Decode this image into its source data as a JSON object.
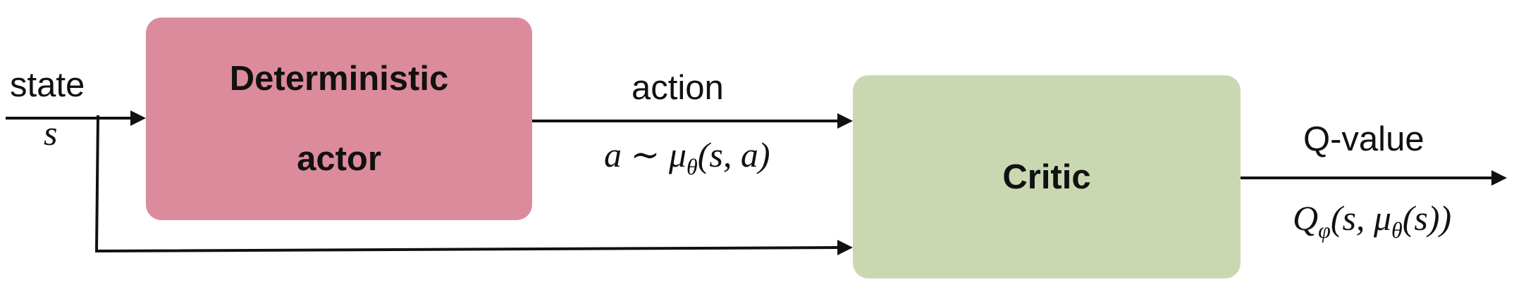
{
  "nodes": {
    "actor": {
      "line1": "Deterministic",
      "line2": "actor",
      "color": "#dc8b9c"
    },
    "critic": {
      "label": "Critic",
      "color": "#cad8b2"
    }
  },
  "edges": {
    "input": {
      "label": "state",
      "symbol": "s"
    },
    "action": {
      "label": "action",
      "formula": "a ~ μθ(s, a)"
    },
    "output": {
      "label": "Q-value",
      "formula": "Qφ(s, μθ(s))"
    }
  },
  "colors": {
    "line": "#111111",
    "background": "#ffffff"
  }
}
